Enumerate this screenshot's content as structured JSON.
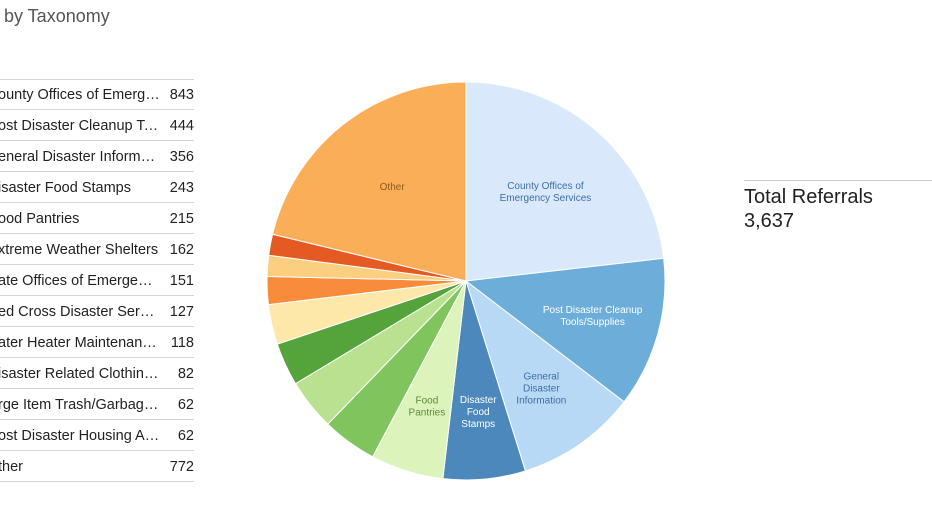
{
  "title": "by Taxonomy",
  "list": [
    {
      "label": "ounty Offices of Emergen...",
      "value": "843"
    },
    {
      "label": "ost Disaster Cleanup Tool...",
      "value": "444"
    },
    {
      "label": "eneral Disaster Informati...",
      "value": "356"
    },
    {
      "label": "isaster Food Stamps",
      "value": "243"
    },
    {
      "label": "ood Pantries",
      "value": "215"
    },
    {
      "label": "xtreme Weather Shelters",
      "value": "162"
    },
    {
      "label": "ate Offices of Emergency ...",
      "value": "151"
    },
    {
      "label": "ed Cross Disaster Service ...",
      "value": "127"
    },
    {
      "label": "ater Heater Maintenance...",
      "value": "118"
    },
    {
      "label": "isaster Related Clothing/E...",
      "value": "82"
    },
    {
      "label": "rge Item Trash/Garbage P...",
      "value": "62"
    },
    {
      "label": "ost Disaster Housing Assist...",
      "value": "62"
    },
    {
      "label": "ther",
      "value": "772"
    }
  ],
  "total": {
    "label": "Total Referrals",
    "value": "3,637"
  },
  "chart_data": {
    "type": "pie",
    "slices": [
      {
        "label": [
          "County Offices of",
          "Emergency Services"
        ],
        "value": 843,
        "color": "#d9e9fb",
        "text_color": "#3b6fa6"
      },
      {
        "label": [
          "Post Disaster Cleanup",
          "Tools/Supplies"
        ],
        "value": 444,
        "color": "#6dadd9",
        "text_color": "#ffffff"
      },
      {
        "label": [
          "General",
          "Disaster",
          "Information"
        ],
        "value": 356,
        "color": "#b8d9f5",
        "text_color": "#3b6fa6"
      },
      {
        "label": [
          "Disaster",
          "Food",
          "Stamps"
        ],
        "value": 243,
        "color": "#4c88bb",
        "text_color": "#ffffff"
      },
      {
        "label": [
          "Food",
          "Pantries"
        ],
        "value": 215,
        "color": "#dcf3bb",
        "text_color": "#5c8c34"
      },
      {
        "label": [],
        "value": 162,
        "color": "#80c45d",
        "text_color": "#ffffff"
      },
      {
        "label": [],
        "value": 151,
        "color": "#b9e290",
        "text_color": "#ffffff"
      },
      {
        "label": [],
        "value": 127,
        "color": "#54a33b",
        "text_color": "#ffffff"
      },
      {
        "label": [],
        "value": 118,
        "color": "#fde7a9",
        "text_color": "#ffffff"
      },
      {
        "label": [],
        "value": 82,
        "color": "#f98c3b",
        "text_color": "#ffffff"
      },
      {
        "label": [],
        "value": 62,
        "color": "#fccf80",
        "text_color": "#ffffff"
      },
      {
        "label": [],
        "value": 62,
        "color": "#e55a22",
        "text_color": "#ffffff"
      },
      {
        "label": [
          "Other"
        ],
        "value": 772,
        "color": "#f9ae57",
        "text_color": "#8a5a22"
      }
    ]
  }
}
